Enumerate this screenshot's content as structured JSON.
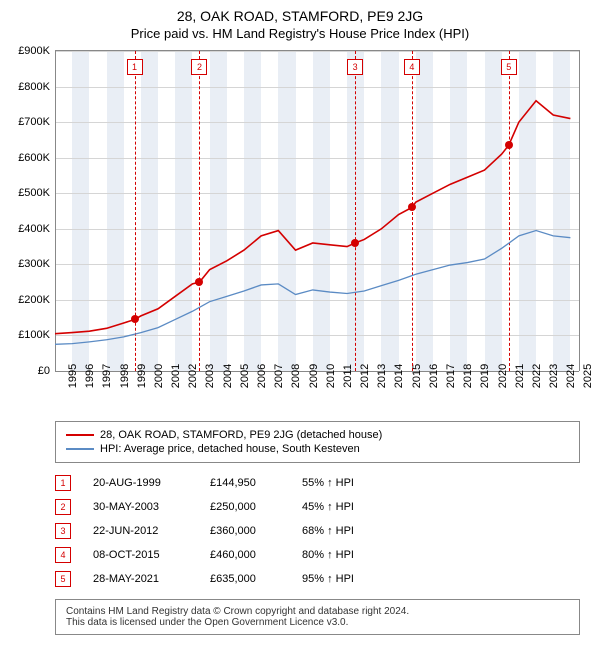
{
  "title": "28, OAK ROAD, STAMFORD, PE9 2JG",
  "subtitle": "Price paid vs. HM Land Registry's House Price Index (HPI)",
  "chart": {
    "type": "line",
    "background_color": "#ffffff",
    "band_color": "#e9eef5",
    "axis_color": "#888888",
    "grid_color": "#d5d5d5",
    "xmin": 1995,
    "xmax": 2025.5,
    "xticks": [
      1995,
      1996,
      1997,
      1998,
      1999,
      2000,
      2001,
      2002,
      2003,
      2004,
      2005,
      2006,
      2007,
      2008,
      2009,
      2010,
      2011,
      2012,
      2013,
      2014,
      2015,
      2016,
      2017,
      2018,
      2019,
      2020,
      2021,
      2022,
      2023,
      2024,
      2025
    ],
    "ymin": 0,
    "ymax": 900000,
    "yticks": [
      0,
      100000,
      200000,
      300000,
      400000,
      500000,
      600000,
      700000,
      800000,
      900000
    ],
    "ytick_labels": [
      "£0",
      "£100K",
      "£200K",
      "£300K",
      "£400K",
      "£500K",
      "£600K",
      "£700K",
      "£800K",
      "£900K"
    ],
    "marker_line_color": "#d40000",
    "marker_box_border": "#d40000",
    "marker_box_text": "#d40000",
    "series": [
      {
        "name": "28, OAK ROAD, STAMFORD, PE9 2JG (detached house)",
        "color": "#d40000",
        "width": 1.6,
        "points": [
          [
            1995,
            105000
          ],
          [
            1996,
            108000
          ],
          [
            1997,
            112000
          ],
          [
            1998,
            120000
          ],
          [
            1999,
            135000
          ],
          [
            1999.63,
            144950
          ],
          [
            2000,
            155000
          ],
          [
            2001,
            175000
          ],
          [
            2002,
            210000
          ],
          [
            2003,
            245000
          ],
          [
            2003.41,
            250000
          ],
          [
            2004,
            285000
          ],
          [
            2005,
            310000
          ],
          [
            2006,
            340000
          ],
          [
            2007,
            380000
          ],
          [
            2008,
            395000
          ],
          [
            2009,
            340000
          ],
          [
            2010,
            360000
          ],
          [
            2011,
            355000
          ],
          [
            2012,
            350000
          ],
          [
            2012.47,
            360000
          ],
          [
            2013,
            370000
          ],
          [
            2014,
            400000
          ],
          [
            2015,
            440000
          ],
          [
            2015.77,
            460000
          ],
          [
            2016,
            475000
          ],
          [
            2017,
            500000
          ],
          [
            2018,
            525000
          ],
          [
            2019,
            545000
          ],
          [
            2020,
            565000
          ],
          [
            2021,
            610000
          ],
          [
            2021.41,
            635000
          ],
          [
            2022,
            700000
          ],
          [
            2023,
            760000
          ],
          [
            2024,
            720000
          ],
          [
            2025,
            710000
          ]
        ]
      },
      {
        "name": "HPI: Average price, detached house, South Kesteven",
        "color": "#5b8bc4",
        "width": 1.3,
        "points": [
          [
            1995,
            75000
          ],
          [
            1996,
            77000
          ],
          [
            1997,
            82000
          ],
          [
            1998,
            88000
          ],
          [
            1999,
            96000
          ],
          [
            2000,
            108000
          ],
          [
            2001,
            122000
          ],
          [
            2002,
            145000
          ],
          [
            2003,
            168000
          ],
          [
            2004,
            195000
          ],
          [
            2005,
            210000
          ],
          [
            2006,
            225000
          ],
          [
            2007,
            242000
          ],
          [
            2008,
            245000
          ],
          [
            2009,
            215000
          ],
          [
            2010,
            228000
          ],
          [
            2011,
            222000
          ],
          [
            2012,
            218000
          ],
          [
            2013,
            225000
          ],
          [
            2014,
            240000
          ],
          [
            2015,
            255000
          ],
          [
            2016,
            272000
          ],
          [
            2017,
            285000
          ],
          [
            2018,
            298000
          ],
          [
            2019,
            305000
          ],
          [
            2020,
            315000
          ],
          [
            2021,
            345000
          ],
          [
            2022,
            380000
          ],
          [
            2023,
            395000
          ],
          [
            2024,
            380000
          ],
          [
            2025,
            375000
          ]
        ]
      }
    ],
    "transactions": [
      {
        "n": "1",
        "year": 1999.63,
        "price": 144950,
        "date": "20-AUG-1999",
        "price_label": "£144,950",
        "hpi": "55% ↑ HPI"
      },
      {
        "n": "2",
        "year": 2003.41,
        "price": 250000,
        "date": "30-MAY-2003",
        "price_label": "£250,000",
        "hpi": "45% ↑ HPI"
      },
      {
        "n": "3",
        "year": 2012.47,
        "price": 360000,
        "date": "22-JUN-2012",
        "price_label": "£360,000",
        "hpi": "68% ↑ HPI"
      },
      {
        "n": "4",
        "year": 2015.77,
        "price": 460000,
        "date": "08-OCT-2015",
        "price_label": "£460,000",
        "hpi": "80% ↑ HPI"
      },
      {
        "n": "5",
        "year": 2021.41,
        "price": 635000,
        "date": "28-MAY-2021",
        "price_label": "£635,000",
        "hpi": "95% ↑ HPI"
      }
    ]
  },
  "footer_line1": "Contains HM Land Registry data © Crown copyright and database right 2024.",
  "footer_line2": "This data is licensed under the Open Government Licence v3.0."
}
